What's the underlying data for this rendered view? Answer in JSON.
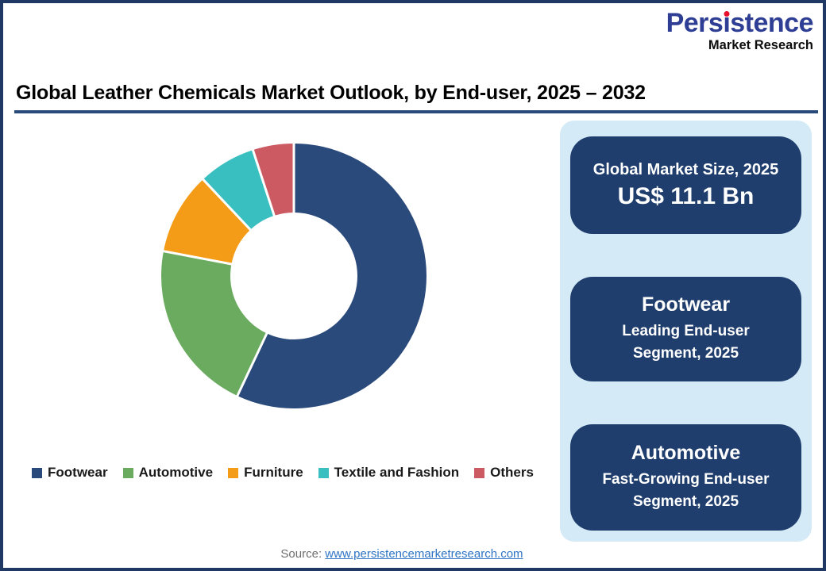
{
  "logo": {
    "brand_main": "Persistence",
    "brand_sub": "Market Research",
    "brand_color": "#2D3E94",
    "dot_color": "#E8112D"
  },
  "header": {
    "title": "Global Leather Chemicals Market Outlook, by End-user, 2025 – 2032",
    "underline_color": "#2A4A7C"
  },
  "chart_data": {
    "type": "pie",
    "subtype": "donut",
    "title": "Global Leather Chemicals Market Outlook, by End-user, 2025 – 2032",
    "categories": [
      "Footwear",
      "Automotive",
      "Furniture",
      "Textile and Fashion",
      "Others"
    ],
    "values": [
      57,
      21,
      10,
      7,
      5
    ],
    "values_note": "approximate percent share estimated from arc angles; no numeric labels shown",
    "colors": [
      "#2A4A7B",
      "#6BAB5F",
      "#F49C17",
      "#39BFC0",
      "#CC5A62"
    ],
    "start_angle_deg": 0,
    "direction": "clockwise",
    "inner_radius_ratio": 0.48,
    "legend_position": "bottom",
    "legend_entries": [
      "Footwear",
      "Automotive",
      "Furniture",
      "Textile and Fashion",
      "Others"
    ]
  },
  "side_panel": {
    "bg_color": "#D5EAF7",
    "card_color": "#1F3E6D",
    "cards": [
      {
        "line1": "Global Market Size, 2025",
        "line2": "US$ 11.1 Bn"
      },
      {
        "title": "Footwear",
        "line1": "Leading End-user",
        "line2": "Segment, 2025"
      },
      {
        "title": "Automotive",
        "line1": "Fast-Growing End-user",
        "line2": "Segment, 2025"
      }
    ]
  },
  "footer": {
    "source_label": "Source:",
    "source_link": "www.persistencemarketresearch.com"
  }
}
